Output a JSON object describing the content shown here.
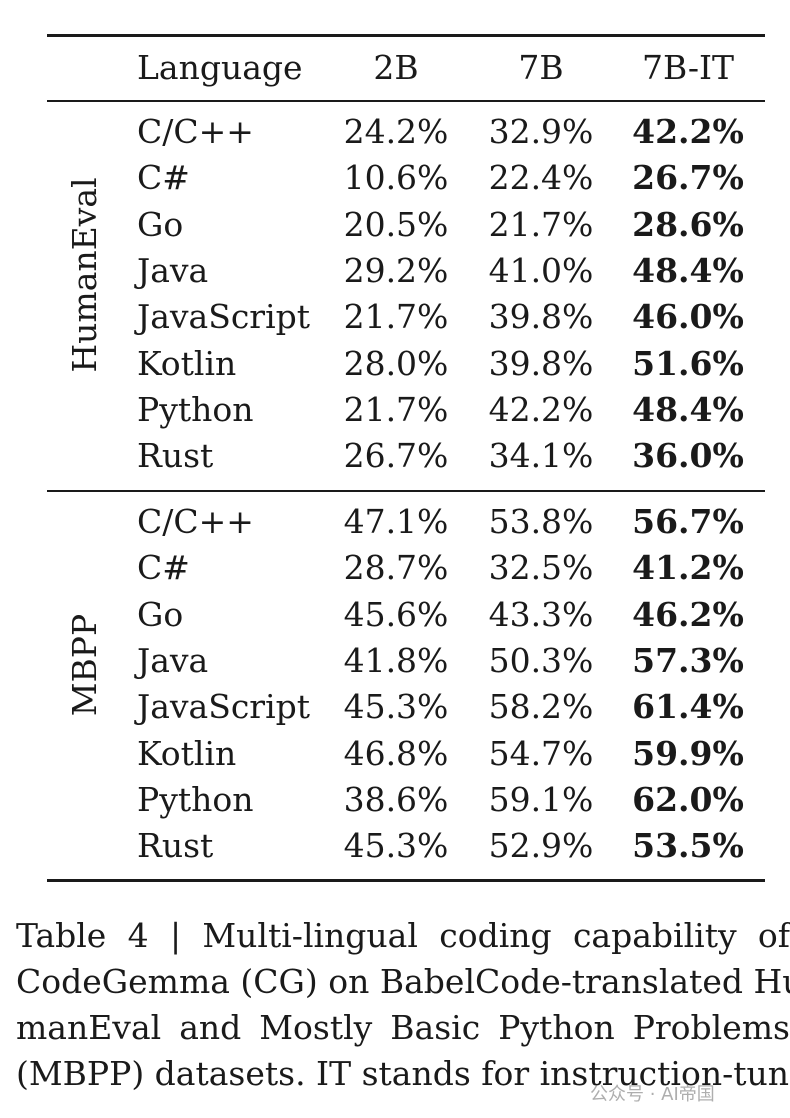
{
  "table": {
    "headers": {
      "language": "Language",
      "col_2b": "2B",
      "col_7b": "7B",
      "col_7b_it": "7B-IT"
    },
    "groups": [
      {
        "label": "HumanEval",
        "rows": [
          {
            "language": "C/C++",
            "v2b": "24.2%",
            "v7b": "32.9%",
            "v7bit": "42.2%"
          },
          {
            "language": "C#",
            "v2b": "10.6%",
            "v7b": "22.4%",
            "v7bit": "26.7%"
          },
          {
            "language": "Go",
            "v2b": "20.5%",
            "v7b": "21.7%",
            "v7bit": "28.6%"
          },
          {
            "language": "Java",
            "v2b": "29.2%",
            "v7b": "41.0%",
            "v7bit": "48.4%"
          },
          {
            "language": "JavaScript",
            "v2b": "21.7%",
            "v7b": "39.8%",
            "v7bit": "46.0%"
          },
          {
            "language": "Kotlin",
            "v2b": "28.0%",
            "v7b": "39.8%",
            "v7bit": "51.6%"
          },
          {
            "language": "Python",
            "v2b": "21.7%",
            "v7b": "42.2%",
            "v7bit": "48.4%"
          },
          {
            "language": "Rust",
            "v2b": "26.7%",
            "v7b": "34.1%",
            "v7bit": "36.0%"
          }
        ]
      },
      {
        "label": "MBPP",
        "rows": [
          {
            "language": "C/C++",
            "v2b": "47.1%",
            "v7b": "53.8%",
            "v7bit": "56.7%"
          },
          {
            "language": "C#",
            "v2b": "28.7%",
            "v7b": "32.5%",
            "v7bit": "41.2%"
          },
          {
            "language": "Go",
            "v2b": "45.6%",
            "v7b": "43.3%",
            "v7bit": "46.2%"
          },
          {
            "language": "Java",
            "v2b": "41.8%",
            "v7b": "50.3%",
            "v7bit": "57.3%"
          },
          {
            "language": "JavaScript",
            "v2b": "45.3%",
            "v7b": "58.2%",
            "v7bit": "61.4%"
          },
          {
            "language": "Kotlin",
            "v2b": "46.8%",
            "v7b": "54.7%",
            "v7bit": "59.9%"
          },
          {
            "language": "Python",
            "v2b": "38.6%",
            "v7b": "59.1%",
            "v7bit": "62.0%"
          },
          {
            "language": "Rust",
            "v2b": "45.3%",
            "v7b": "52.9%",
            "v7bit": "53.5%"
          }
        ]
      }
    ]
  },
  "caption": {
    "lines": [
      "Table 4 | Multi-lingual coding capability of",
      "CodeGemma (CG) on BabelCode-translated Hu",
      "manEval and Mostly Basic Python Problems",
      "(MBPP) datasets. IT stands for instruction-tuned."
    ]
  },
  "watermark": "公众号 · AI帝国"
}
